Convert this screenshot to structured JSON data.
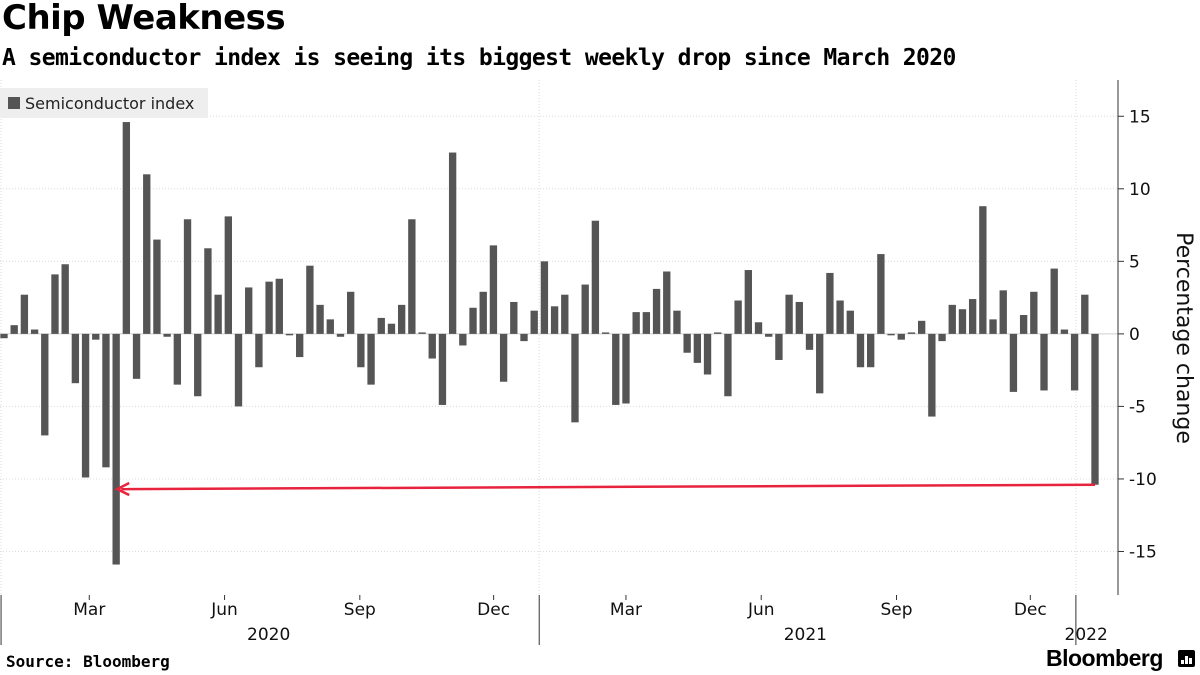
{
  "chart_data": {
    "type": "bar",
    "title": "Chip Weakness",
    "subtitle": "A semiconductor index is seeing its biggest weekly drop since March 2020",
    "ylabel": "Percentage change",
    "xlabel": "",
    "ylim": [
      -18,
      17.5
    ],
    "yticks": [
      15,
      10,
      5,
      0,
      -5,
      -10,
      -15
    ],
    "yticklabels": [
      "15",
      "10",
      "5",
      "0",
      "-5",
      "-10",
      "-15"
    ],
    "legend": [
      {
        "name": "Semiconductor index",
        "color": "#555555"
      }
    ],
    "legend_position": "top-left",
    "x_start_date": "2020-01-03",
    "x_end_date": "2022-01-14",
    "x_ticks": [
      {
        "label": "Mar",
        "date": "2020-03-01"
      },
      {
        "label": "Jun",
        "date": "2020-06-01"
      },
      {
        "label": "Sep",
        "date": "2020-09-01"
      },
      {
        "label": "Dec",
        "date": "2020-12-01"
      },
      {
        "label": "Mar",
        "date": "2021-03-01"
      },
      {
        "label": "Jun",
        "date": "2021-06-01"
      },
      {
        "label": "Sep",
        "date": "2021-09-01"
      },
      {
        "label": "Dec",
        "date": "2021-12-01"
      }
    ],
    "year_ticks": [
      {
        "label": "2020",
        "date": "2020-01-01"
      },
      {
        "label": "2021",
        "date": "2021-01-01"
      },
      {
        "label": "2022",
        "date": "2022-01-01"
      }
    ],
    "year_labels": [
      {
        "label": "2020",
        "date": "2020-07-01"
      },
      {
        "label": "2021",
        "date": "2021-07-01"
      },
      {
        "label": "2022",
        "date": "2022-01-08"
      }
    ],
    "series": [
      {
        "name": "Semiconductor index",
        "color": "#555555",
        "values": [
          -0.3,
          0.6,
          2.7,
          0.3,
          -7.0,
          4.1,
          4.8,
          -3.4,
          -9.9,
          -0.4,
          -9.2,
          -15.9,
          14.6,
          -3.1,
          11.0,
          6.5,
          -0.2,
          -3.5,
          7.9,
          -4.3,
          5.9,
          2.7,
          8.1,
          -5.0,
          3.2,
          -2.3,
          3.6,
          3.8,
          -0.1,
          -1.6,
          4.7,
          2.0,
          1.0,
          -0.2,
          2.9,
          -2.3,
          -3.5,
          1.1,
          0.7,
          2.0,
          7.9,
          0.1,
          -1.7,
          -4.9,
          12.5,
          -0.8,
          1.8,
          2.9,
          6.1,
          -3.3,
          2.2,
          -0.5,
          1.6,
          5.0,
          1.9,
          2.7,
          -6.1,
          3.4,
          7.8,
          0.1,
          -4.9,
          -4.8,
          1.5,
          1.5,
          3.1,
          4.3,
          1.6,
          -1.3,
          -2.0,
          -2.8,
          0.1,
          -4.3,
          2.3,
          4.4,
          0.8,
          -0.2,
          -1.8,
          2.7,
          2.2,
          -1.1,
          -4.1,
          4.2,
          2.3,
          1.6,
          -2.3,
          -2.3,
          5.5,
          -0.1,
          -0.4,
          0.1,
          0.9,
          -5.7,
          -0.5,
          2.0,
          1.7,
          2.4,
          8.8,
          1.0,
          3.0,
          -4.0,
          1.3,
          2.9,
          -3.9,
          4.5,
          0.3,
          -3.9,
          2.7,
          -10.4
        ]
      }
    ],
    "annotations": [
      {
        "type": "arrow",
        "from_date": "2022-01-14",
        "from_y": -10.4,
        "to_date": "2020-03-20",
        "to_y": -10.7,
        "color": "#e8233d"
      }
    ]
  },
  "legend_label": "Semiconductor index",
  "source": "Source: Bloomberg",
  "brand": "Bloomberg"
}
